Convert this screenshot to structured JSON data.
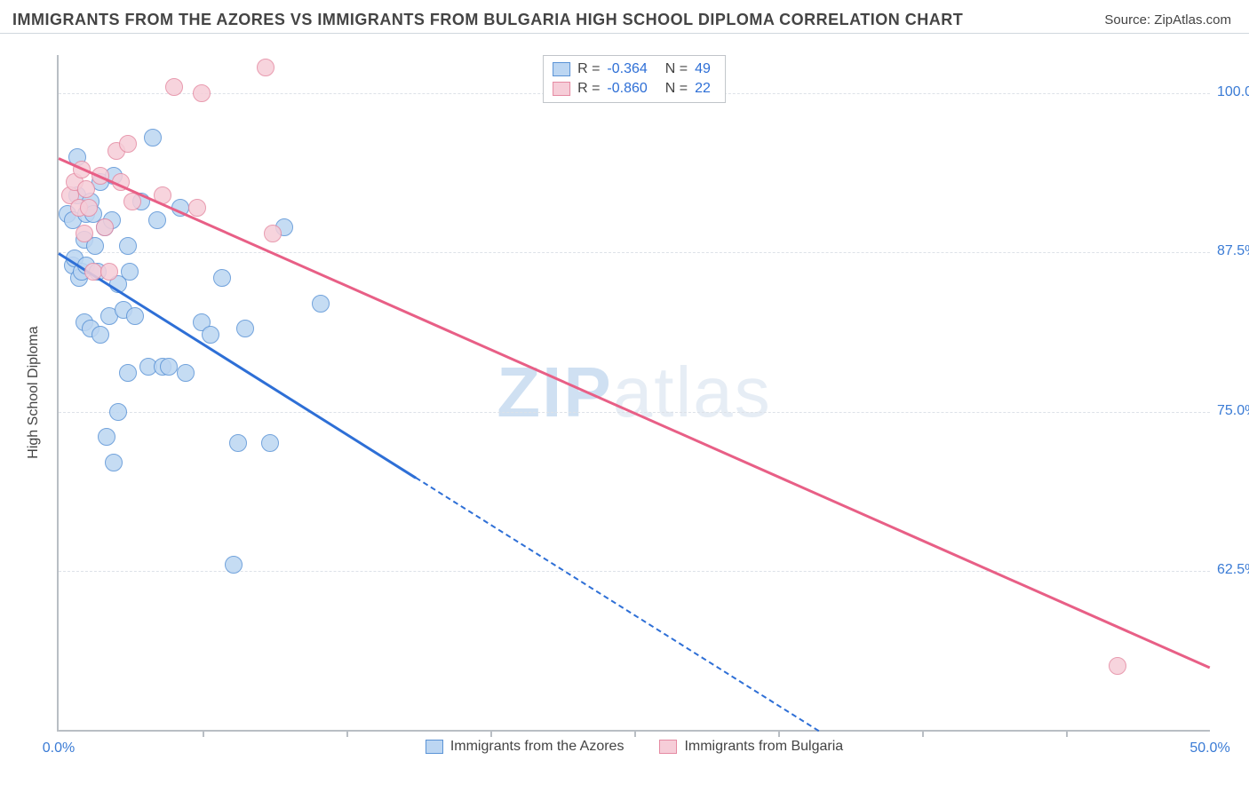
{
  "header": {
    "title": "IMMIGRANTS FROM THE AZORES VS IMMIGRANTS FROM BULGARIA HIGH SCHOOL DIPLOMA CORRELATION CHART",
    "source_prefix": "Source: ",
    "source_name": "ZipAtlas.com"
  },
  "watermark": {
    "bold": "ZIP",
    "rest": "atlas"
  },
  "axes": {
    "y_label": "High School Diploma",
    "x_min": 0.0,
    "x_max": 50.0,
    "y_min": 50.0,
    "y_max": 103.0,
    "x_ticks": [
      0.0,
      50.0
    ],
    "x_tick_labels": [
      "0.0%",
      "50.0%"
    ],
    "x_minor_ticks": [
      6.25,
      12.5,
      18.75,
      25.0,
      31.25,
      37.5,
      43.75
    ],
    "y_gridlines": [
      62.5,
      75.0,
      87.5,
      100.0
    ],
    "y_tick_labels": [
      "62.5%",
      "75.0%",
      "87.5%",
      "100.0%"
    ],
    "grid_color": "#dde2e8",
    "axis_color": "#b9bec4",
    "tick_label_color": "#3a7bd5"
  },
  "series": [
    {
      "name": "Immigrants from the Azores",
      "marker_fill": "#bcd6f2",
      "marker_stroke": "#5a93d6",
      "line_color": "#2e6fd6",
      "r_value": "-0.364",
      "n_value": "49",
      "trend": {
        "x1": 0.0,
        "y1": 87.5,
        "x2": 33.0,
        "y2": 50.0,
        "solid_until_x": 15.5
      },
      "points": [
        [
          0.4,
          90.5
        ],
        [
          0.6,
          86.5
        ],
        [
          0.6,
          90.0
        ],
        [
          0.7,
          87.0
        ],
        [
          0.8,
          95.0
        ],
        [
          0.8,
          92.0
        ],
        [
          0.9,
          85.5
        ],
        [
          1.0,
          86.0
        ],
        [
          1.1,
          88.5
        ],
        [
          1.1,
          82.0
        ],
        [
          1.2,
          90.5
        ],
        [
          1.2,
          86.5
        ],
        [
          1.4,
          91.5
        ],
        [
          1.4,
          81.5
        ],
        [
          1.5,
          90.5
        ],
        [
          1.6,
          88.0
        ],
        [
          1.7,
          86.0
        ],
        [
          1.8,
          93.0
        ],
        [
          1.8,
          81.0
        ],
        [
          2.0,
          89.5
        ],
        [
          2.1,
          73.0
        ],
        [
          2.2,
          82.5
        ],
        [
          2.3,
          90.0
        ],
        [
          2.4,
          93.5
        ],
        [
          2.4,
          71.0
        ],
        [
          2.6,
          75.0
        ],
        [
          2.6,
          85.0
        ],
        [
          2.8,
          83.0
        ],
        [
          3.0,
          88.0
        ],
        [
          3.0,
          78.0
        ],
        [
          3.1,
          86.0
        ],
        [
          3.3,
          82.5
        ],
        [
          3.6,
          91.5
        ],
        [
          3.9,
          78.5
        ],
        [
          4.1,
          96.5
        ],
        [
          4.3,
          90.0
        ],
        [
          4.5,
          78.5
        ],
        [
          4.8,
          78.5
        ],
        [
          5.3,
          91.0
        ],
        [
          5.5,
          78.0
        ],
        [
          6.2,
          82.0
        ],
        [
          6.6,
          81.0
        ],
        [
          7.1,
          85.5
        ],
        [
          7.6,
          63.0
        ],
        [
          7.8,
          72.5
        ],
        [
          8.1,
          81.5
        ],
        [
          9.8,
          89.5
        ],
        [
          11.4,
          83.5
        ],
        [
          9.2,
          72.5
        ]
      ]
    },
    {
      "name": "Immigrants from Bulgaria",
      "marker_fill": "#f6cdd8",
      "marker_stroke": "#e58aa2",
      "line_color": "#e85f86",
      "r_value": "-0.860",
      "n_value": "22",
      "trend": {
        "x1": 0.0,
        "y1": 95.0,
        "x2": 50.0,
        "y2": 55.0,
        "solid_until_x": 50.0
      },
      "points": [
        [
          0.5,
          92.0
        ],
        [
          0.7,
          93.0
        ],
        [
          0.9,
          91.0
        ],
        [
          1.0,
          94.0
        ],
        [
          1.1,
          89.0
        ],
        [
          1.2,
          92.5
        ],
        [
          1.3,
          91.0
        ],
        [
          1.5,
          86.0
        ],
        [
          1.8,
          93.5
        ],
        [
          2.0,
          89.5
        ],
        [
          2.2,
          86.0
        ],
        [
          2.5,
          95.5
        ],
        [
          2.7,
          93.0
        ],
        [
          3.2,
          91.5
        ],
        [
          3.0,
          96.0
        ],
        [
          4.5,
          92.0
        ],
        [
          5.0,
          100.5
        ],
        [
          6.2,
          100.0
        ],
        [
          6.0,
          91.0
        ],
        [
          9.0,
          102.0
        ],
        [
          9.3,
          89.0
        ],
        [
          46.0,
          55.0
        ]
      ]
    }
  ],
  "legend_labels": {
    "r_prefix": "R = ",
    "n_prefix": "N = "
  }
}
